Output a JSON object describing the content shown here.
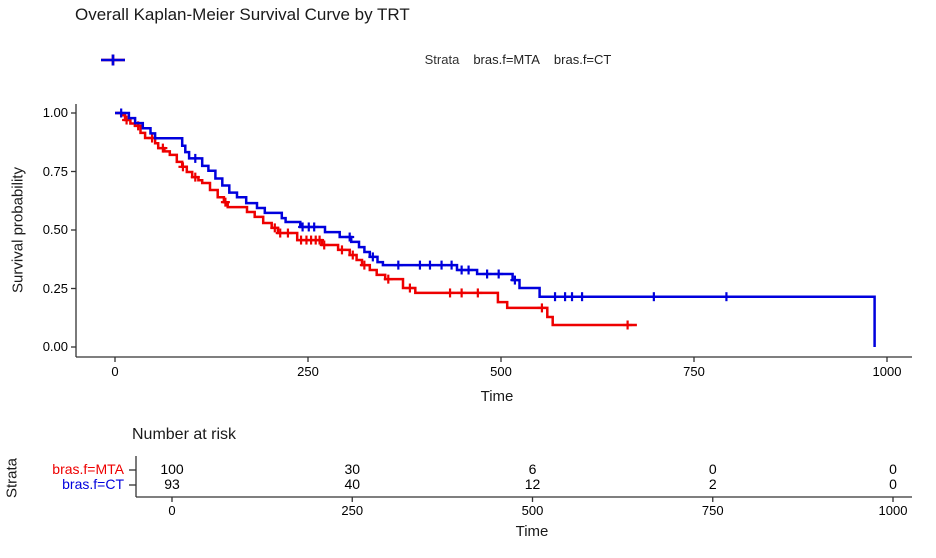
{
  "title": "Overall Kaplan-Meier Survival Curve by TRT",
  "legend": {
    "title": "Strata",
    "items": [
      {
        "label": "bras.f=MTA",
        "color": "#ee0000"
      },
      {
        "label": "bras.f=CT",
        "color": "#0000dd"
      }
    ]
  },
  "chart_data": {
    "type": "line",
    "subtype": "kaplan-meier-step-curves",
    "title": "Overall Kaplan-Meier Survival Curve by TRT",
    "xlabel": "Time",
    "ylabel": "Survival probability",
    "xlim": [
      0,
      1000
    ],
    "ylim": [
      0.0,
      1.0
    ],
    "x_ticks": [
      "0",
      "250",
      "500",
      "750",
      "1000"
    ],
    "x_tick_values": [
      0,
      250,
      500,
      750,
      1000
    ],
    "y_ticks": [
      "1.00",
      "0.75",
      "0.50",
      "0.25",
      "0.00"
    ],
    "y_tick_values": [
      1.0,
      0.75,
      0.5,
      0.25,
      0.0
    ],
    "grid": false,
    "legend_position": "top",
    "legend_title": "Strata",
    "series": [
      {
        "name": "bras.f=MTA",
        "color": "#ee0000",
        "points": [
          [
            0,
            1.0
          ],
          [
            8,
            0.99
          ],
          [
            13,
            0.97
          ],
          [
            20,
            0.955
          ],
          [
            26,
            0.945
          ],
          [
            33,
            0.915
          ],
          [
            39,
            0.893
          ],
          [
            52,
            0.871
          ],
          [
            56,
            0.85
          ],
          [
            64,
            0.836
          ],
          [
            71,
            0.821
          ],
          [
            80,
            0.791
          ],
          [
            87,
            0.77
          ],
          [
            93,
            0.748
          ],
          [
            100,
            0.726
          ],
          [
            108,
            0.713
          ],
          [
            113,
            0.701
          ],
          [
            123,
            0.671
          ],
          [
            133,
            0.64
          ],
          [
            141,
            0.619
          ],
          [
            146,
            0.598
          ],
          [
            171,
            0.577
          ],
          [
            181,
            0.556
          ],
          [
            192,
            0.53
          ],
          [
            203,
            0.509
          ],
          [
            211,
            0.487
          ],
          [
            236,
            0.457
          ],
          [
            268,
            0.436
          ],
          [
            289,
            0.415
          ],
          [
            304,
            0.393
          ],
          [
            313,
            0.372
          ],
          [
            320,
            0.35
          ],
          [
            330,
            0.329
          ],
          [
            339,
            0.308
          ],
          [
            350,
            0.29
          ],
          [
            373,
            0.252
          ],
          [
            389,
            0.231
          ],
          [
            496,
            0.192
          ],
          [
            508,
            0.167
          ],
          [
            560,
            0.128
          ],
          [
            567,
            0.094
          ]
        ],
        "end_time": 676,
        "drops_to_zero": false,
        "censor_marks": [
          [
            15,
            0.97
          ],
          [
            30,
            0.945
          ],
          [
            48,
            0.893
          ],
          [
            62,
            0.85
          ],
          [
            88,
            0.77
          ],
          [
            104,
            0.726
          ],
          [
            143,
            0.619
          ],
          [
            207,
            0.509
          ],
          [
            214,
            0.487
          ],
          [
            224,
            0.487
          ],
          [
            241,
            0.457
          ],
          [
            248,
            0.457
          ],
          [
            254,
            0.457
          ],
          [
            260,
            0.457
          ],
          [
            265,
            0.457
          ],
          [
            271,
            0.436
          ],
          [
            294,
            0.415
          ],
          [
            308,
            0.393
          ],
          [
            323,
            0.35
          ],
          [
            354,
            0.29
          ],
          [
            382,
            0.252
          ],
          [
            434,
            0.231
          ],
          [
            449,
            0.231
          ],
          [
            470,
            0.231
          ],
          [
            553,
            0.167
          ],
          [
            664,
            0.094
          ]
        ]
      },
      {
        "name": "bras.f=CT",
        "color": "#0000dd",
        "points": [
          [
            0,
            1.0
          ],
          [
            18,
            0.978
          ],
          [
            26,
            0.957
          ],
          [
            36,
            0.935
          ],
          [
            46,
            0.913
          ],
          [
            52,
            0.892
          ],
          [
            87,
            0.86
          ],
          [
            91,
            0.833
          ],
          [
            96,
            0.806
          ],
          [
            113,
            0.774
          ],
          [
            121,
            0.753
          ],
          [
            130,
            0.72
          ],
          [
            139,
            0.69
          ],
          [
            148,
            0.66
          ],
          [
            158,
            0.64
          ],
          [
            170,
            0.615
          ],
          [
            184,
            0.594
          ],
          [
            194,
            0.573
          ],
          [
            216,
            0.551
          ],
          [
            221,
            0.534
          ],
          [
            240,
            0.513
          ],
          [
            272,
            0.491
          ],
          [
            291,
            0.47
          ],
          [
            306,
            0.449
          ],
          [
            316,
            0.427
          ],
          [
            323,
            0.406
          ],
          [
            330,
            0.385
          ],
          [
            340,
            0.363
          ],
          [
            347,
            0.35
          ],
          [
            443,
            0.329
          ],
          [
            469,
            0.312
          ],
          [
            515,
            0.286
          ],
          [
            524,
            0.252
          ],
          [
            550,
            0.215
          ]
        ],
        "end_time": 984,
        "drops_to_zero": true,
        "censor_marks": [
          [
            8,
            1.0
          ],
          [
            104,
            0.806
          ],
          [
            243,
            0.513
          ],
          [
            251,
            0.513
          ],
          [
            258,
            0.513
          ],
          [
            304,
            0.47
          ],
          [
            334,
            0.385
          ],
          [
            367,
            0.35
          ],
          [
            395,
            0.35
          ],
          [
            408,
            0.35
          ],
          [
            423,
            0.35
          ],
          [
            436,
            0.35
          ],
          [
            449,
            0.329
          ],
          [
            458,
            0.329
          ],
          [
            482,
            0.312
          ],
          [
            497,
            0.312
          ],
          [
            518,
            0.286
          ],
          [
            570,
            0.215
          ],
          [
            583,
            0.215
          ],
          [
            592,
            0.215
          ],
          [
            605,
            0.215
          ],
          [
            698,
            0.215
          ],
          [
            792,
            0.215
          ]
        ]
      }
    ]
  },
  "risk_table": {
    "title": "Number at risk",
    "strata_axis_label": "Strata",
    "xlabel": "Time",
    "x_ticks": [
      "0",
      "250",
      "500",
      "750",
      "1000"
    ],
    "rows": [
      {
        "label": "bras.f=MTA",
        "color": "#ee0000",
        "values": [
          "100",
          "30",
          "6",
          "0",
          "0"
        ]
      },
      {
        "label": "bras.f=CT",
        "color": "#0000dd",
        "values": [
          "93",
          "40",
          "12",
          "2",
          "0"
        ]
      }
    ]
  },
  "colors": {
    "mta": "#ee0000",
    "ct": "#0000dd",
    "axis": "#333333"
  }
}
